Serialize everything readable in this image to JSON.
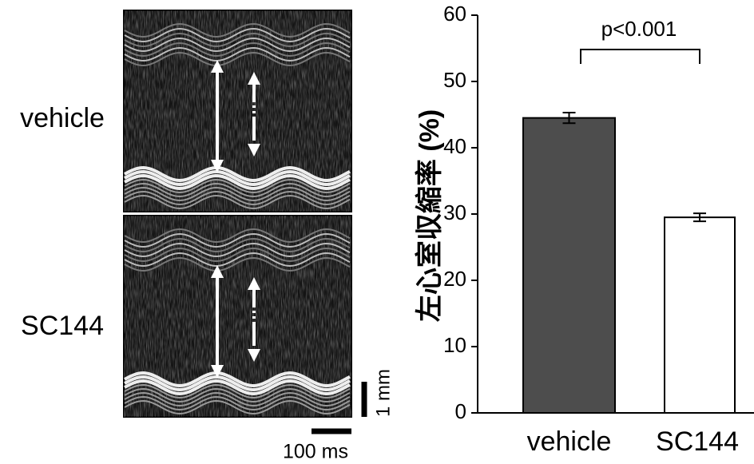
{
  "chart_data": {
    "type": "bar",
    "y_label": "左心室収縮率 (%)",
    "categories": [
      "vehicle",
      "SC144"
    ],
    "values": [
      44.5,
      29.5
    ],
    "errors": [
      0.8,
      0.6
    ],
    "colors": [
      "#4d4d4d",
      "#ffffff"
    ],
    "ylim": [
      0,
      60
    ],
    "yticks": [
      0,
      10,
      20,
      30,
      40,
      50,
      60
    ],
    "annotation": "p<0.001"
  },
  "images": {
    "panels": [
      "vehicle",
      "SC144"
    ],
    "scale_y": "1 mm",
    "scale_x": "100 ms"
  }
}
